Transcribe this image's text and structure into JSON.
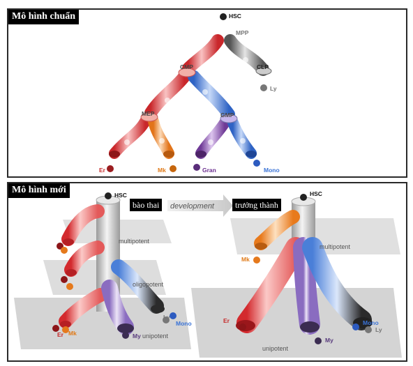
{
  "panels": {
    "standard": {
      "title": "Mô hình chuẩn"
    },
    "new": {
      "title": "Mô hình mới",
      "fetal": "bào thai",
      "development": "development",
      "adult": "trưởng thành"
    }
  },
  "standard_labels": {
    "hsc": "HSC",
    "mpp": "MPP",
    "cmp": "CMP",
    "clp": "CLP",
    "ly": "Ly",
    "mep": "MEP",
    "gmp": "GMP",
    "er": "Er",
    "mk": "Mk",
    "gran": "Gran",
    "mono": "Mono"
  },
  "fetal_labels": {
    "hsc": "HSC",
    "multipotent": "multipotent",
    "oligopotent": "oligopotent",
    "unipotent": "unipotent",
    "er": "Er",
    "mk": "Mk",
    "my": "My",
    "ly": "Ly",
    "mono": "Mono"
  },
  "adult_labels": {
    "hsc": "HSC",
    "multipotent": "multipotent",
    "unipotent": "unipotent",
    "mk": "Mk",
    "er": "Er",
    "my": "My",
    "mono": "Mono",
    "ly": "Ly"
  },
  "colors": {
    "erythroid": "#e8262a",
    "megakaryocyte": "#f28b1e",
    "granulocyte": "#7a3fa0",
    "monocyte": "#3d78d8",
    "lymphoid": "#666666",
    "plane": "#d0d0d0"
  }
}
